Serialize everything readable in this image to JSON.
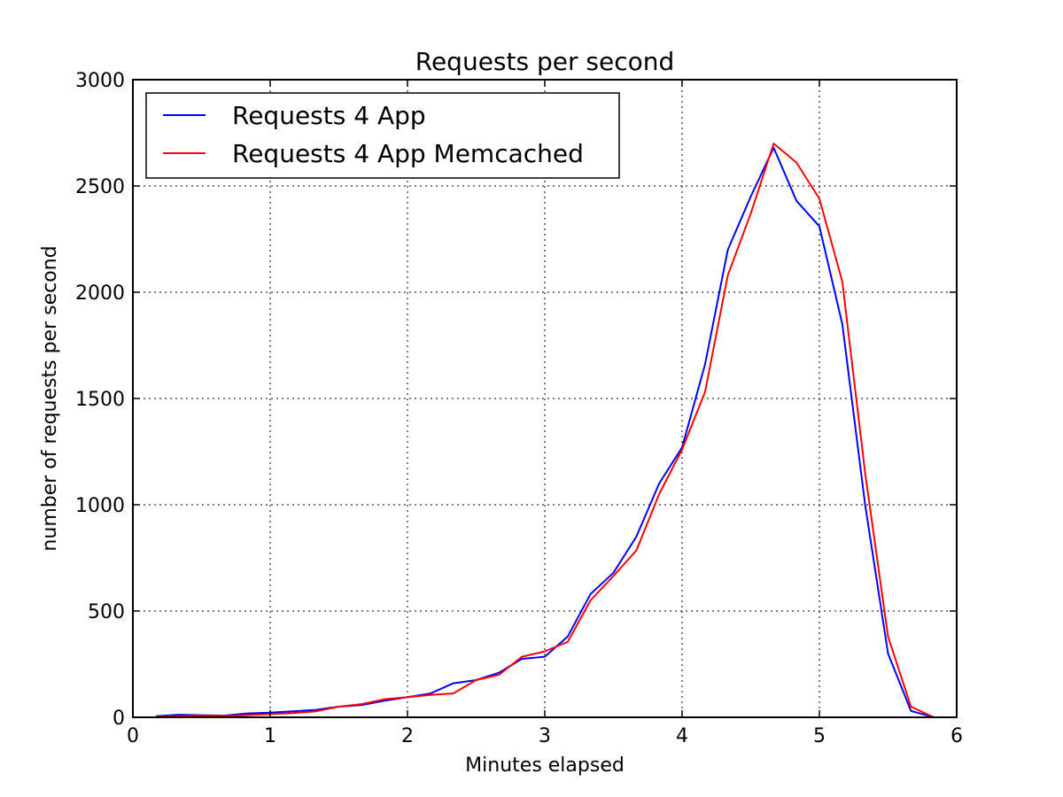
{
  "chart_data": {
    "type": "line",
    "title": "Requests per second",
    "xlabel": "Minutes elapsed",
    "ylabel": "number of requests per second",
    "xlim": [
      0,
      6
    ],
    "ylim": [
      0,
      3000
    ],
    "xticks": [
      0,
      1,
      2,
      3,
      4,
      5,
      6
    ],
    "yticks": [
      0,
      500,
      1000,
      1500,
      2000,
      2500,
      3000
    ],
    "grid": true,
    "legend_position": "top-left",
    "series": [
      {
        "name": "Requests 4 App",
        "color": "#0000ff",
        "x": [
          0.167,
          0.333,
          0.5,
          0.667,
          0.833,
          1.0,
          1.167,
          1.333,
          1.5,
          1.667,
          1.833,
          2.0,
          2.167,
          2.333,
          2.5,
          2.667,
          2.833,
          3.0,
          3.167,
          3.333,
          3.5,
          3.667,
          3.833,
          4.0,
          4.167,
          4.333,
          4.5,
          4.667,
          4.833,
          5.0,
          5.167,
          5.333,
          5.5,
          5.667,
          5.833,
          6.0
        ],
        "y": [
          5,
          12,
          10,
          8,
          18,
          22,
          28,
          35,
          50,
          58,
          78,
          95,
          112,
          160,
          175,
          210,
          275,
          285,
          380,
          580,
          680,
          850,
          1100,
          1270,
          1660,
          2200,
          2450,
          2680,
          2430,
          2310,
          1850,
          1000,
          300,
          30,
          0,
          0
        ]
      },
      {
        "name": "Requests 4 App Memcached",
        "color": "#ff0000",
        "x": [
          0.167,
          0.333,
          0.5,
          0.667,
          0.833,
          1.0,
          1.167,
          1.333,
          1.5,
          1.667,
          1.833,
          2.0,
          2.167,
          2.333,
          2.5,
          2.667,
          2.833,
          3.0,
          3.167,
          3.333,
          3.5,
          3.667,
          3.833,
          4.0,
          4.167,
          4.333,
          4.5,
          4.667,
          4.833,
          5.0,
          5.167,
          5.333,
          5.5,
          5.667,
          5.833,
          6.0
        ],
        "y": [
          2,
          5,
          8,
          6,
          10,
          15,
          20,
          28,
          50,
          62,
          85,
          95,
          105,
          112,
          175,
          200,
          285,
          310,
          355,
          550,
          665,
          785,
          1050,
          1260,
          1530,
          2080,
          2370,
          2700,
          2610,
          2440,
          2050,
          1150,
          380,
          50,
          0,
          0
        ]
      }
    ]
  }
}
